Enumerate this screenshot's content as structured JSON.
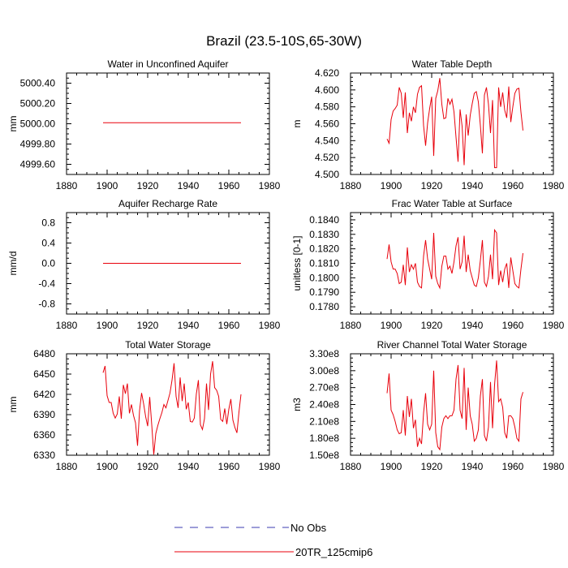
{
  "figure_title": "Brazil (23.5-10S,65-30W)",
  "legend": {
    "entries": [
      {
        "label": "No Obs",
        "color": "#3b3bb0",
        "style": "dashed"
      },
      {
        "label": "20TR_125cmip6",
        "color": "#e8000b",
        "style": "solid"
      }
    ]
  },
  "chart_data": [
    {
      "type": "line",
      "title": "Water in Unconfined Aquifer",
      "ylabel": "mm",
      "xlim": [
        1880,
        1980
      ],
      "ylim": [
        4999.5,
        5000.5
      ],
      "xticks": [
        1880,
        1900,
        1920,
        1940,
        1960,
        1980
      ],
      "yticks": [
        4999.6,
        4999.8,
        5000.0,
        5000.2,
        5000.4
      ],
      "ytick_labels": [
        "4999.60",
        "4999.80",
        "5000.00",
        "5000.20",
        "5000.40"
      ],
      "series": [
        {
          "name": "20TR_125cmip6",
          "x_start": 1898,
          "x_step": 1,
          "color": "#e8000b",
          "values": [
            5000.01,
            5000.01,
            5000.01,
            5000.01,
            5000.01,
            5000.01,
            5000.01,
            5000.01,
            5000.01,
            5000.01,
            5000.01,
            5000.01,
            5000.01,
            5000.01,
            5000.01,
            5000.01,
            5000.01,
            5000.01,
            5000.01,
            5000.01,
            5000.01,
            5000.01,
            5000.01,
            5000.01,
            5000.01,
            5000.01,
            5000.01,
            5000.01,
            5000.01,
            5000.01,
            5000.01,
            5000.01,
            5000.01,
            5000.01,
            5000.01,
            5000.01,
            5000.01,
            5000.01,
            5000.01,
            5000.01,
            5000.01,
            5000.01,
            5000.01,
            5000.01,
            5000.01,
            5000.01,
            5000.01,
            5000.01,
            5000.01,
            5000.01,
            5000.01,
            5000.01,
            5000.01,
            5000.01,
            5000.01,
            5000.01,
            5000.01,
            5000.01,
            5000.01,
            5000.01,
            5000.01,
            5000.01,
            5000.01,
            5000.01,
            5000.01,
            5000.01,
            5000.01,
            5000.01,
            5000.01
          ]
        }
      ]
    },
    {
      "type": "line",
      "title": "Water Table Depth",
      "ylabel": "m",
      "xlim": [
        1880,
        1980
      ],
      "ylim": [
        4.5,
        4.62
      ],
      "xticks": [
        1880,
        1900,
        1920,
        1940,
        1960,
        1980
      ],
      "yticks": [
        4.5,
        4.52,
        4.54,
        4.56,
        4.58,
        4.6,
        4.62
      ],
      "ytick_labels": [
        "4.500",
        "4.520",
        "4.540",
        "4.560",
        "4.580",
        "4.600",
        "4.620"
      ],
      "series": [
        {
          "name": "20TR_125cmip6",
          "x_start": 1898,
          "x_step": 1,
          "color": "#e8000b",
          "values": [
            4.542,
            4.537,
            4.565,
            4.575,
            4.578,
            4.582,
            4.603,
            4.596,
            4.567,
            4.597,
            4.549,
            4.573,
            4.563,
            4.58,
            4.573,
            4.595,
            4.603,
            4.605,
            4.558,
            4.534,
            4.561,
            4.578,
            4.592,
            4.522,
            4.59,
            4.599,
            4.614,
            4.583,
            4.566,
            4.567,
            4.59,
            4.583,
            4.589,
            4.574,
            4.544,
            4.515,
            4.577,
            4.557,
            4.511,
            4.571,
            4.546,
            4.57,
            4.584,
            4.596,
            4.598,
            4.586,
            4.558,
            4.525,
            4.594,
            4.603,
            4.583,
            4.549,
            4.588,
            4.508,
            4.508,
            4.603,
            4.58,
            4.597,
            4.576,
            4.567,
            4.604,
            4.562,
            4.58,
            4.596,
            4.601,
            4.602,
            4.574,
            4.552
          ]
        }
      ]
    },
    {
      "type": "line",
      "title": "Aquifer Recharge Rate",
      "ylabel": "mm/d",
      "xlim": [
        1880,
        1980
      ],
      "ylim": [
        -1,
        1
      ],
      "xticks": [
        1880,
        1900,
        1920,
        1940,
        1960,
        1980
      ],
      "yticks": [
        -0.8,
        -0.4,
        0,
        0.4,
        0.8
      ],
      "ytick_labels": [
        "-0.8",
        "-0.4",
        "0.0",
        "0.4",
        "0.8"
      ],
      "series": [
        {
          "name": "20TR_125cmip6",
          "x_start": 1898,
          "x_step": 1,
          "color": "#e8000b",
          "values": [
            0,
            0,
            0,
            0,
            0,
            0,
            0,
            0,
            0,
            0,
            0,
            0,
            0,
            0,
            0,
            0,
            0,
            0,
            0,
            0,
            0,
            0,
            0,
            0,
            0,
            0,
            0,
            0,
            0,
            0,
            0,
            0,
            0,
            0,
            0,
            0,
            0,
            0,
            0,
            0,
            0,
            0,
            0,
            0,
            0,
            0,
            0,
            0,
            0,
            0,
            0,
            0,
            0,
            0,
            0,
            0,
            0,
            0,
            0,
            0,
            0,
            0,
            0,
            0,
            0,
            0,
            0,
            0,
            0
          ]
        }
      ]
    },
    {
      "type": "line",
      "title": "Frac Water Table at Surface",
      "ylabel": "unitless [0-1]",
      "xlim": [
        1880,
        1980
      ],
      "ylim": [
        0.1775,
        0.1845
      ],
      "xticks": [
        1880,
        1900,
        1920,
        1940,
        1960,
        1980
      ],
      "yticks": [
        0.178,
        0.179,
        0.18,
        0.181,
        0.182,
        0.183,
        0.184
      ],
      "ytick_labels": [
        "0.1780",
        "0.1790",
        "0.1800",
        "0.1810",
        "0.1820",
        "0.1830",
        "0.1840"
      ],
      "series": [
        {
          "name": "20TR_125cmip6",
          "x_start": 1898,
          "x_step": 1,
          "color": "#e8000b",
          "values": [
            0.1813,
            0.1823,
            0.1811,
            0.1806,
            0.1806,
            0.1803,
            0.1796,
            0.1797,
            0.1809,
            0.1795,
            0.1821,
            0.1804,
            0.1809,
            0.1806,
            0.181,
            0.1797,
            0.1794,
            0.1793,
            0.1815,
            0.1826,
            0.1813,
            0.1806,
            0.1799,
            0.1831,
            0.1801,
            0.1796,
            0.1793,
            0.1808,
            0.1815,
            0.1815,
            0.1806,
            0.1808,
            0.1803,
            0.1811,
            0.1822,
            0.1828,
            0.1806,
            0.1811,
            0.1829,
            0.1804,
            0.1816,
            0.1805,
            0.18,
            0.1795,
            0.1794,
            0.18,
            0.1812,
            0.1826,
            0.1797,
            0.1794,
            0.1801,
            0.1816,
            0.1799,
            0.1833,
            0.1831,
            0.1795,
            0.1805,
            0.1797,
            0.1806,
            0.181,
            0.1793,
            0.1814,
            0.1805,
            0.1796,
            0.1794,
            0.1793,
            0.1806,
            0.1817
          ]
        }
      ]
    },
    {
      "type": "line",
      "title": "Total Water Storage",
      "ylabel": "mm",
      "xlim": [
        1880,
        1980
      ],
      "ylim": [
        6330,
        6480
      ],
      "xticks": [
        1880,
        1900,
        1920,
        1940,
        1960,
        1980
      ],
      "yticks": [
        6330,
        6360,
        6390,
        6420,
        6450,
        6480
      ],
      "ytick_labels": [
        "6330",
        "6360",
        "6390",
        "6420",
        "6450",
        "6480"
      ],
      "series": [
        {
          "name": "20TR_125cmip6",
          "x_start": 1898,
          "x_step": 1,
          "color": "#e8000b",
          "values": [
            6452,
            6462,
            6418,
            6408,
            6408,
            6392,
            6385,
            6391,
            6417,
            6384,
            6434,
            6421,
            6436,
            6392,
            6405,
            6389,
            6378,
            6344,
            6396,
            6422,
            6406,
            6387,
            6373,
            6416,
            6375,
            6331,
            6362,
            6374,
            6384,
            6393,
            6405,
            6400,
            6411,
            6422,
            6441,
            6466,
            6417,
            6400,
            6445,
            6410,
            6436,
            6398,
            6408,
            6380,
            6379,
            6385,
            6421,
            6441,
            6375,
            6368,
            6384,
            6436,
            6397,
            6450,
            6469,
            6430,
            6426,
            6417,
            6383,
            6380,
            6399,
            6376,
            6398,
            6413,
            6382,
            6371,
            6363,
            6394,
            6420
          ]
        }
      ]
    },
    {
      "type": "line",
      "title": "River Channel Total Water Storage",
      "ylabel": "m3",
      "xlim": [
        1880,
        1980
      ],
      "ylim": [
        150000000.0,
        330000000.0
      ],
      "xticks": [
        1880,
        1900,
        1920,
        1940,
        1960,
        1980
      ],
      "yticks": [
        150000000.0,
        180000000.0,
        210000000.0,
        240000000.0,
        270000000.0,
        300000000.0,
        330000000.0
      ],
      "ytick_labels": [
        "1.50e8",
        "1.80e8",
        "2.10e8",
        "2.40e8",
        "2.70e8",
        "3.00e8",
        "3.30e8"
      ],
      "series": [
        {
          "name": "20TR_125cmip6",
          "x_start": 1898,
          "x_step": 1,
          "color": "#e8000b",
          "values": [
            260000000.0,
            295000000.0,
            230000000.0,
            222000000.0,
            210000000.0,
            195000000.0,
            188000000.0,
            190000000.0,
            230000000.0,
            185000000.0,
            255000000.0,
            218000000.0,
            250000000.0,
            198000000.0,
            213000000.0,
            165000000.0,
            180000000.0,
            170000000.0,
            225000000.0,
            260000000.0,
            205000000.0,
            195000000.0,
            205000000.0,
            300000000.0,
            190000000.0,
            165000000.0,
            160000000.0,
            200000000.0,
            215000000.0,
            220000000.0,
            215000000.0,
            220000000.0,
            220000000.0,
            230000000.0,
            285000000.0,
            310000000.0,
            230000000.0,
            215000000.0,
            305000000.0,
            195000000.0,
            270000000.0,
            220000000.0,
            205000000.0,
            175000000.0,
            180000000.0,
            195000000.0,
            255000000.0,
            285000000.0,
            185000000.0,
            175000000.0,
            200000000.0,
            280000000.0,
            198000000.0,
            275000000.0,
            318000000.0,
            245000000.0,
            250000000.0,
            235000000.0,
            190000000.0,
            180000000.0,
            220000000.0,
            220000000.0,
            215000000.0,
            200000000.0,
            180000000.0,
            175000000.0,
            250000000.0,
            262000000.0
          ]
        }
      ]
    }
  ]
}
